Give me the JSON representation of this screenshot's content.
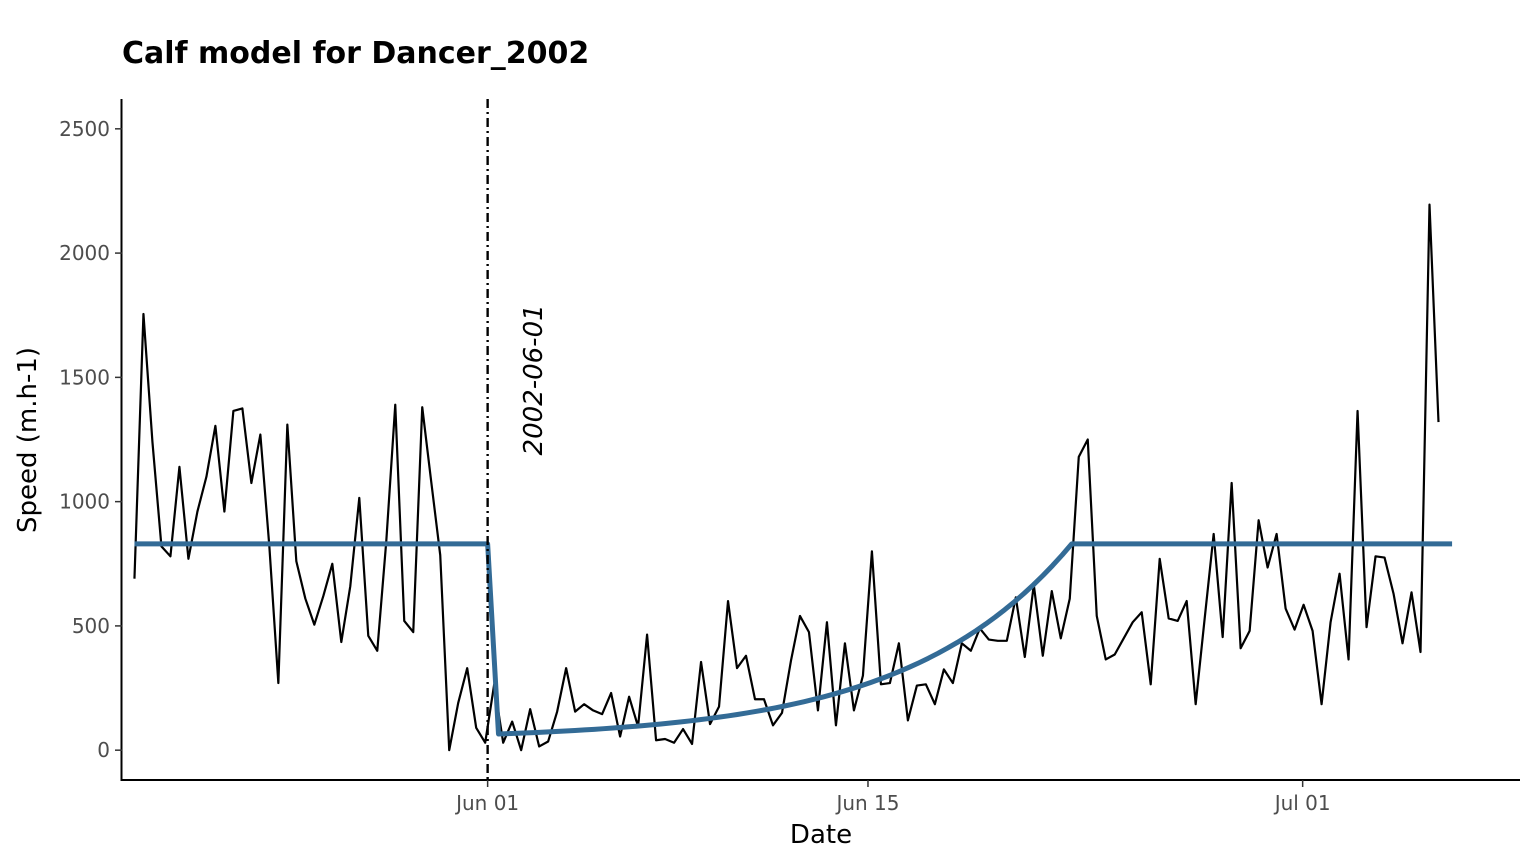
{
  "chart_data": {
    "type": "line",
    "title": "Calf model for Dancer_2002",
    "xlabel": "Date",
    "ylabel": "Speed (m.h-1)",
    "x_start": "2002-05-19",
    "x_end": "2002-07-06",
    "xlim": [
      "2002-05-18T13:00",
      "2002-07-09T00:00"
    ],
    "ylim": [
      -120,
      2620
    ],
    "x_ticks": [
      {
        "date": "2002-06-01",
        "label": "Jun 01"
      },
      {
        "date": "2002-06-15",
        "label": "Jun 15"
      },
      {
        "date": "2002-07-01",
        "label": "Jul 01"
      }
    ],
    "y_ticks": [
      0,
      500,
      1000,
      1500,
      2000,
      2500
    ],
    "grid": false,
    "legend": "none",
    "series": [
      {
        "color": "#000000",
        "values": [
          690,
          1755,
          1240,
          820,
          780,
          1140,
          770,
          960,
          1100,
          1305,
          960,
          1365,
          1375,
          1075,
          1270,
          820,
          270,
          1310,
          760,
          610,
          505,
          620,
          750,
          435,
          660,
          1015,
          460,
          400,
          840,
          1390,
          520,
          475,
          1380,
          1080,
          785,
          0,
          190,
          330,
          90,
          30,
          265,
          30,
          115,
          0,
          165,
          15,
          35,
          155,
          330,
          155,
          185,
          160,
          145,
          230,
          55,
          215,
          95,
          465,
          40,
          45,
          30,
          85,
          25,
          355,
          105,
          175,
          600,
          330,
          380,
          205,
          205,
          100,
          150,
          360,
          540,
          475,
          160,
          515,
          100,
          430,
          160,
          300,
          800,
          265,
          270,
          430,
          120,
          260,
          265,
          185,
          325,
          270,
          430,
          400,
          490,
          445,
          440,
          440,
          615,
          375,
          665,
          380,
          640,
          450,
          610,
          1180,
          1250,
          540,
          365,
          385,
          450,
          515,
          555,
          265,
          770,
          530,
          520,
          600,
          185,
          530,
          870,
          455,
          1075,
          410,
          480,
          925,
          735,
          870,
          570,
          485,
          585,
          480,
          185,
          515,
          710,
          365,
          1365,
          495,
          780,
          775,
          630,
          430,
          635,
          395,
          2195,
          1320
        ]
      },
      {
        "color": "#336b96",
        "model": {
          "level": 830,
          "calving_date": "2002-06-01",
          "drop_to": 65,
          "recovery_end": "2002-06-22T12:00",
          "end": "2002-07-06T12:00"
        }
      }
    ],
    "annotations": [
      {
        "type": "vline",
        "x": "2002-06-01",
        "style": "dotdash",
        "color": "#000000"
      },
      {
        "type": "text",
        "text": "2002-06-01",
        "x": "2002-06-03",
        "y": 1490,
        "rotation": -90,
        "style": "italic"
      }
    ]
  }
}
